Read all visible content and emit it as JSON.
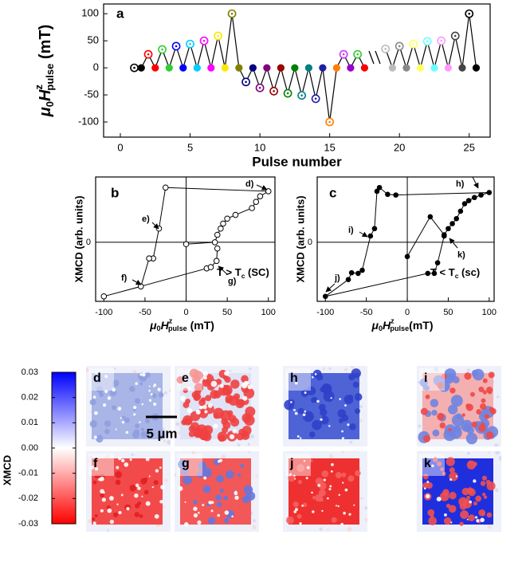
{
  "chart_data": [
    {
      "type": "line",
      "panel": "a",
      "x_label": "Pulse number",
      "y_label": [
        "μ",
        "0",
        "H",
        "z",
        "pulse",
        " (mT)"
      ],
      "x": [
        1,
        1.5,
        2,
        2.5,
        3,
        3.5,
        4,
        4.5,
        5,
        5.5,
        6,
        6.5,
        7,
        7.5,
        8,
        8.5,
        9,
        9.5,
        10,
        10.5,
        11,
        11.5,
        12,
        12.5,
        13,
        13.5,
        14,
        14.5,
        15,
        15.5,
        16,
        16.5,
        17,
        17.5,
        18,
        19,
        19.5,
        20,
        20.5,
        21,
        21.5,
        22,
        22.5,
        23,
        23.5,
        24,
        24.5,
        25,
        25.5
      ],
      "values": [
        0,
        0,
        25,
        0,
        34,
        0,
        40,
        0,
        44,
        0,
        50,
        0,
        59,
        0,
        100,
        0,
        -26,
        0,
        -37,
        0,
        -43,
        0,
        -47,
        0,
        -51,
        0,
        -57,
        0,
        -100,
        0,
        25,
        0,
        25,
        0,
        null,
        35,
        0,
        40,
        0,
        44,
        0,
        49,
        0,
        50,
        0,
        59,
        0,
        100,
        0
      ],
      "point_colors": [
        "#000000",
        "#000000",
        "#ff0000",
        "#ff0000",
        "#33cc33",
        "#33cc33",
        "#0000ff",
        "#0000ff",
        "#00ccff",
        "#00ccff",
        "#ff00ff",
        "#ff00ff",
        "#ffe600",
        "#ffe600",
        "#808000",
        "#808000",
        "#000080",
        "#000080",
        "#800080",
        "#800080",
        "#990000",
        "#990000",
        "#008000",
        "#008000",
        "#008080",
        "#008080",
        "#1f1fa0",
        "#1f1fa0",
        "#ff8000",
        "#ff8000",
        "#cc33ff",
        "#9900cc",
        "#33cc33",
        "#ff0000",
        null,
        "#bbbbbb",
        "#bbbbbb",
        "#888888",
        "#888888",
        "#ffff66",
        "#ffff66",
        "#66ffff",
        "#66ffff",
        "#ff99ff",
        "#ff99ff",
        "#444444",
        "#444444",
        "#000000",
        "#000000"
      ],
      "markers": [
        "open",
        "filled",
        "open",
        "filled",
        "open",
        "filled",
        "open",
        "filled",
        "open",
        "filled",
        "open",
        "filled",
        "open",
        "filled",
        "open",
        "filled",
        "open",
        "filled",
        "open",
        "filled",
        "open",
        "filled",
        "open",
        "filled",
        "open",
        "filled",
        "open",
        "filled",
        "open",
        "filled",
        "open",
        "filled",
        "open",
        "filled",
        null,
        "open",
        "filled",
        "open",
        "filled",
        "open",
        "filled",
        "open",
        "filled",
        "open",
        "filled",
        "open",
        "filled",
        "open",
        "filled"
      ],
      "line_color": "#000000",
      "xlim": [
        -1.2,
        26.5
      ],
      "ylim": [
        -128,
        118
      ],
      "xticks": [
        0,
        5,
        10,
        15,
        20,
        25
      ],
      "yticks": [
        -100,
        -50,
        0,
        50,
        100
      ]
    },
    {
      "type": "loop",
      "panel": "b",
      "x_label": [
        "μ",
        "0",
        "H",
        "z",
        "pulse",
        " (mT)"
      ],
      "y_label": "XMCD (arb. units)",
      "x": [
        0,
        35,
        38,
        42,
        45,
        50,
        60,
        80,
        85,
        90,
        100,
        -25,
        -33,
        -40,
        -45,
        -55,
        -100,
        25,
        30,
        37,
        38
      ],
      "values": [
        -0.03,
        0.0,
        0.12,
        0.22,
        0.3,
        0.38,
        0.44,
        0.55,
        0.65,
        0.74,
        0.82,
        0.88,
        0.22,
        -0.26,
        -0.26,
        -0.71,
        -0.87,
        -0.42,
        -0.4,
        -0.3,
        -0.1
      ],
      "marker": "open",
      "color": "#000000",
      "xlim": [
        -110,
        108
      ],
      "ylim": [
        -0.95,
        1.05
      ],
      "xticks": [
        -100,
        -50,
        0,
        50,
        100
      ],
      "yticks": [
        0
      ],
      "annotations": [
        "d)",
        "e)",
        "f)",
        "g)"
      ],
      "condition": [
        "T > T",
        "c",
        " (SC)"
      ]
    },
    {
      "type": "loop",
      "panel": "c",
      "x_label": [
        "μ",
        "0",
        "H",
        "z",
        "pulse",
        "(mT)"
      ],
      "y_label": "XMCD (arb. units)",
      "x": [
        0,
        28,
        45,
        50,
        55,
        60,
        65,
        70,
        75,
        82,
        90,
        100,
        -14,
        -24,
        -34,
        -37,
        -40,
        -45,
        -55,
        -60,
        -68,
        -72,
        -100,
        25,
        33,
        37,
        45
      ],
      "values": [
        -0.23,
        0.41,
        0.12,
        0.22,
        0.3,
        0.38,
        0.5,
        0.62,
        0.67,
        0.72,
        0.76,
        0.8,
        0.76,
        0.77,
        0.88,
        0.82,
        0.22,
        0.1,
        -0.45,
        -0.5,
        -0.49,
        -0.6,
        -0.87,
        -0.5,
        -0.5,
        -0.33,
        0.1
      ],
      "marker": "filled",
      "color": "#000000",
      "xlim": [
        -110,
        106
      ],
      "ylim": [
        -0.95,
        1.05
      ],
      "xticks": [
        -100,
        -50,
        0,
        50,
        100
      ],
      "yticks": [
        0
      ],
      "annotations": [
        "h)",
        "i)",
        "j)",
        "k)"
      ],
      "condition": [
        "T < T",
        "c",
        " (sc)"
      ]
    },
    {
      "type": "image-grid",
      "panels": [
        "d",
        "e",
        "h",
        "i",
        "f",
        "g",
        "j",
        "k"
      ],
      "scale_bar_label": "5 µm",
      "colorbar": {
        "label": "XMCD",
        "ylim": [
          -0.03,
          0.03
        ],
        "yticks": [
          0.03,
          0.02,
          0.01,
          {
            "value": 0,
            "label": "0.00"
          },
          -0.01,
          -0.02,
          -0.03
        ],
        "colors": [
          "#ff0000",
          "#ffffff",
          "#0000ff"
        ]
      }
    }
  ]
}
